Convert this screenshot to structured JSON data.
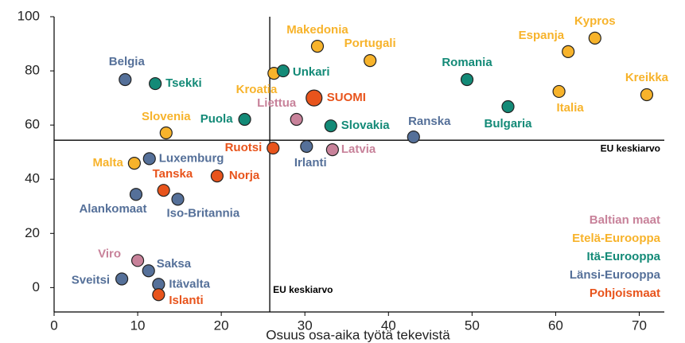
{
  "chart_data": {
    "type": "scatter",
    "x_label": "Osuus osa-aika työtä tekevistä",
    "xlim": [
      0,
      73
    ],
    "xticks": [
      0,
      10,
      20,
      30,
      40,
      50,
      60,
      70
    ],
    "ylim": [
      -9,
      100
    ],
    "yticks": [
      0,
      20,
      40,
      60,
      80,
      100
    ],
    "legend": "bottom-right",
    "highlight": "SUOMI",
    "reference_lines": [
      {
        "axis": "y",
        "value": 54.4,
        "label": "EU keskiarvo"
      },
      {
        "axis": "x",
        "value": 25.8,
        "label": "EU keskiarvo"
      }
    ],
    "series": [
      {
        "name": "Baltian maat",
        "color": "#c8829a",
        "points": [
          {
            "name": "Liettua",
            "x": 29.0,
            "y": 62.1
          },
          {
            "name": "Latvia",
            "x": 33.3,
            "y": 50.9
          },
          {
            "name": "Viro",
            "x": 10.0,
            "y": 10.0
          }
        ]
      },
      {
        "name": "Etelä-Eurooppa",
        "color": "#f7b32b",
        "points": [
          {
            "name": "Makedonia",
            "x": 31.5,
            "y": 89.1
          },
          {
            "name": "Portugali",
            "x": 37.8,
            "y": 83.8
          },
          {
            "name": "Kypros",
            "x": 64.7,
            "y": 92.1
          },
          {
            "name": "Espanja",
            "x": 61.5,
            "y": 87.1
          },
          {
            "name": "Italia",
            "x": 60.4,
            "y": 72.4
          },
          {
            "name": "Kreikka",
            "x": 70.9,
            "y": 71.2
          },
          {
            "name": "Kroatia",
            "x": 26.3,
            "y": 79.1
          },
          {
            "name": "Slovenia",
            "x": 13.4,
            "y": 57.1
          },
          {
            "name": "Malta",
            "x": 9.6,
            "y": 45.9
          }
        ]
      },
      {
        "name": "Itä-Eurooppa",
        "color": "#138a77",
        "points": [
          {
            "name": "Tsekki",
            "x": 12.1,
            "y": 75.3
          },
          {
            "name": "Unkari",
            "x": 27.4,
            "y": 80.0
          },
          {
            "name": "Romania",
            "x": 49.4,
            "y": 76.8
          },
          {
            "name": "Bulgaria",
            "x": 54.3,
            "y": 66.8
          },
          {
            "name": "Puola",
            "x": 22.8,
            "y": 62.1
          },
          {
            "name": "Slovakia",
            "x": 33.1,
            "y": 59.7
          }
        ]
      },
      {
        "name": "Länsi-Eurooppa",
        "color": "#557099",
        "points": [
          {
            "name": "Belgia",
            "x": 8.5,
            "y": 76.8
          },
          {
            "name": "Luxemburg",
            "x": 11.4,
            "y": 47.6
          },
          {
            "name": "Alankomaat",
            "x": 9.8,
            "y": 34.4
          },
          {
            "name": "Iso-Britannia",
            "x": 14.8,
            "y": 32.6
          },
          {
            "name": "Ranska",
            "x": 43.0,
            "y": 55.6
          },
          {
            "name": "Irlanti",
            "x": 30.2,
            "y": 52.1
          },
          {
            "name": "Saksa",
            "x": 11.3,
            "y": 6.2
          },
          {
            "name": "Sveitsi",
            "x": 8.1,
            "y": 3.2
          },
          {
            "name": "Itävalta",
            "x": 12.5,
            "y": 1.2
          }
        ]
      },
      {
        "name": "Pohjoismaat",
        "color": "#e8541c",
        "points": [
          {
            "name": "SUOMI",
            "x": 31.1,
            "y": 70.0
          },
          {
            "name": "Ruotsi",
            "x": 26.2,
            "y": 51.5
          },
          {
            "name": "Tanska",
            "x": 13.1,
            "y": 35.9
          },
          {
            "name": "Norja",
            "x": 19.5,
            "y": 41.2
          },
          {
            "name": "Islanti",
            "x": 12.5,
            "y": -2.6
          }
        ]
      }
    ]
  }
}
